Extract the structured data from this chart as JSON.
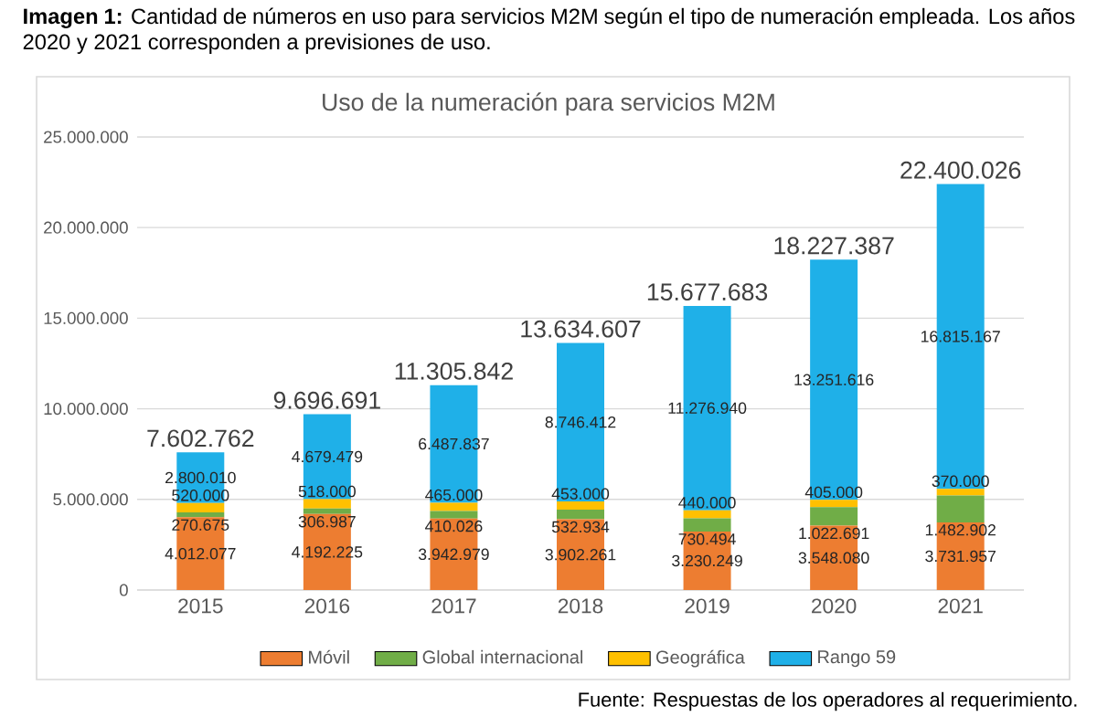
{
  "chart_data": {
    "type": "bar",
    "stacked": true,
    "title": "Uso de la numeración para servicios M2M",
    "annotations": [
      "**Imagen 1:** Cantidad de números en uso para servicios M2M según el tipo de numeración empleada. Los años 2020 y 2021 corresponden a previsiones de uso.",
      "Fuente: Respuestas de los operadores al requerimiento."
    ],
    "categories": [
      "2015",
      "2016",
      "2017",
      "2018",
      "2019",
      "2020",
      "2021"
    ],
    "series": [
      {
        "name": "Móvil",
        "color": "#ed7d31",
        "values": [
          4012077,
          4192225,
          3942979,
          3902261,
          3230249,
          3548080,
          3731957
        ],
        "value_labels": [
          "4.012.077",
          "4.192.225",
          "3.942.979",
          "3.902.261",
          "3.230.249",
          "3.548.080",
          "3.731.957"
        ]
      },
      {
        "name": "Global internacional",
        "color": "#70ad47",
        "values": [
          270675,
          306987,
          410026,
          532934,
          730494,
          1022691,
          1482902
        ],
        "value_labels": [
          "270.675",
          "306.987",
          "410.026",
          "532.934",
          "730.494",
          "1.022.691",
          "1.482.902"
        ]
      },
      {
        "name": "Geográfica",
        "color": "#ffc000",
        "values": [
          520000,
          518000,
          465000,
          453000,
          440000,
          405000,
          370000
        ],
        "value_labels": [
          "520.000",
          "518.000",
          "465.000",
          "453.000",
          "440.000",
          "405.000",
          "370.000"
        ]
      },
      {
        "name": "Rango 59",
        "color": "#1fb0e8",
        "values": [
          2800010,
          4679479,
          6487837,
          8746412,
          11276940,
          13251616,
          16815167
        ],
        "value_labels": [
          "2.800.010",
          "4.679.479",
          "6.487.837",
          "8.746.412",
          "11.276.940",
          "13.251.616",
          "16.815.167"
        ]
      }
    ],
    "totals": [
      "7.602.762",
      "9.696.691",
      "11.305.842",
      "13.634.607",
      "15.677.683",
      "18.227.387",
      "22.400.026"
    ],
    "ylim": [
      0,
      25000000
    ],
    "yticks": [
      {
        "value": 0,
        "label": "0"
      },
      {
        "value": 5000000,
        "label": "5.000.000"
      },
      {
        "value": 10000000,
        "label": "10.000.000"
      },
      {
        "value": 15000000,
        "label": "15.000.000"
      },
      {
        "value": 20000000,
        "label": "20.000.000"
      },
      {
        "value": 25000000,
        "label": "25.000.000"
      }
    ],
    "grid": "y",
    "legend": "bottom"
  }
}
